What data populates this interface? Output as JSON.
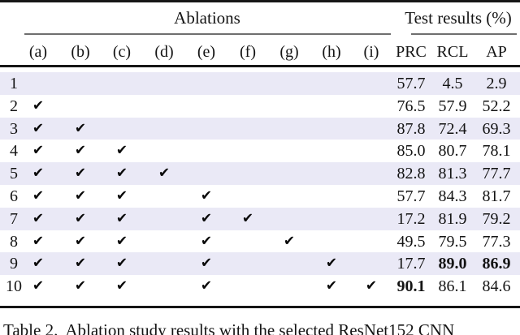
{
  "table": {
    "group_headers": {
      "ablations": "Ablations",
      "results": "Test results (%)"
    },
    "ablation_columns": [
      "(a)",
      "(b)",
      "(c)",
      "(d)",
      "(e)",
      "(f)",
      "(g)",
      "(h)",
      "(i)"
    ],
    "result_columns": [
      "PRC",
      "RCL",
      "AP"
    ],
    "check_glyph": "✔",
    "rows": [
      {
        "num": "1",
        "checks": [],
        "results": [
          "57.7",
          "4.5",
          "2.9"
        ],
        "bold": [
          false,
          false,
          false
        ]
      },
      {
        "num": "2",
        "checks": [
          0
        ],
        "results": [
          "76.5",
          "57.9",
          "52.2"
        ],
        "bold": [
          false,
          false,
          false
        ]
      },
      {
        "num": "3",
        "checks": [
          0,
          1
        ],
        "results": [
          "87.8",
          "72.4",
          "69.3"
        ],
        "bold": [
          false,
          false,
          false
        ]
      },
      {
        "num": "4",
        "checks": [
          0,
          1,
          2
        ],
        "results": [
          "85.0",
          "80.7",
          "78.1"
        ],
        "bold": [
          false,
          false,
          false
        ]
      },
      {
        "num": "5",
        "checks": [
          0,
          1,
          2,
          3
        ],
        "results": [
          "82.8",
          "81.3",
          "77.7"
        ],
        "bold": [
          false,
          false,
          false
        ]
      },
      {
        "num": "6",
        "checks": [
          0,
          1,
          2,
          4
        ],
        "results": [
          "57.7",
          "84.3",
          "81.7"
        ],
        "bold": [
          false,
          false,
          false
        ]
      },
      {
        "num": "7",
        "checks": [
          0,
          1,
          2,
          4,
          5
        ],
        "results": [
          "17.2",
          "81.9",
          "79.2"
        ],
        "bold": [
          false,
          false,
          false
        ]
      },
      {
        "num": "8",
        "checks": [
          0,
          1,
          2,
          4,
          6
        ],
        "results": [
          "49.5",
          "79.5",
          "77.3"
        ],
        "bold": [
          false,
          false,
          false
        ]
      },
      {
        "num": "9",
        "checks": [
          0,
          1,
          2,
          4,
          7
        ],
        "results": [
          "17.7",
          "89.0",
          "86.9"
        ],
        "bold": [
          false,
          true,
          true
        ]
      },
      {
        "num": "10",
        "checks": [
          0,
          1,
          2,
          4,
          7,
          8
        ],
        "results": [
          "90.1",
          "86.1",
          "84.6"
        ],
        "bold": [
          true,
          false,
          false
        ]
      }
    ]
  },
  "caption": {
    "label": "Table 2.",
    "text": "Ablation study results with the selected ResNet152 CNN"
  },
  "colors": {
    "row_shade": "#eae9f6",
    "rule_thick": "#161616",
    "rule_thin": "#6e6e6e"
  }
}
